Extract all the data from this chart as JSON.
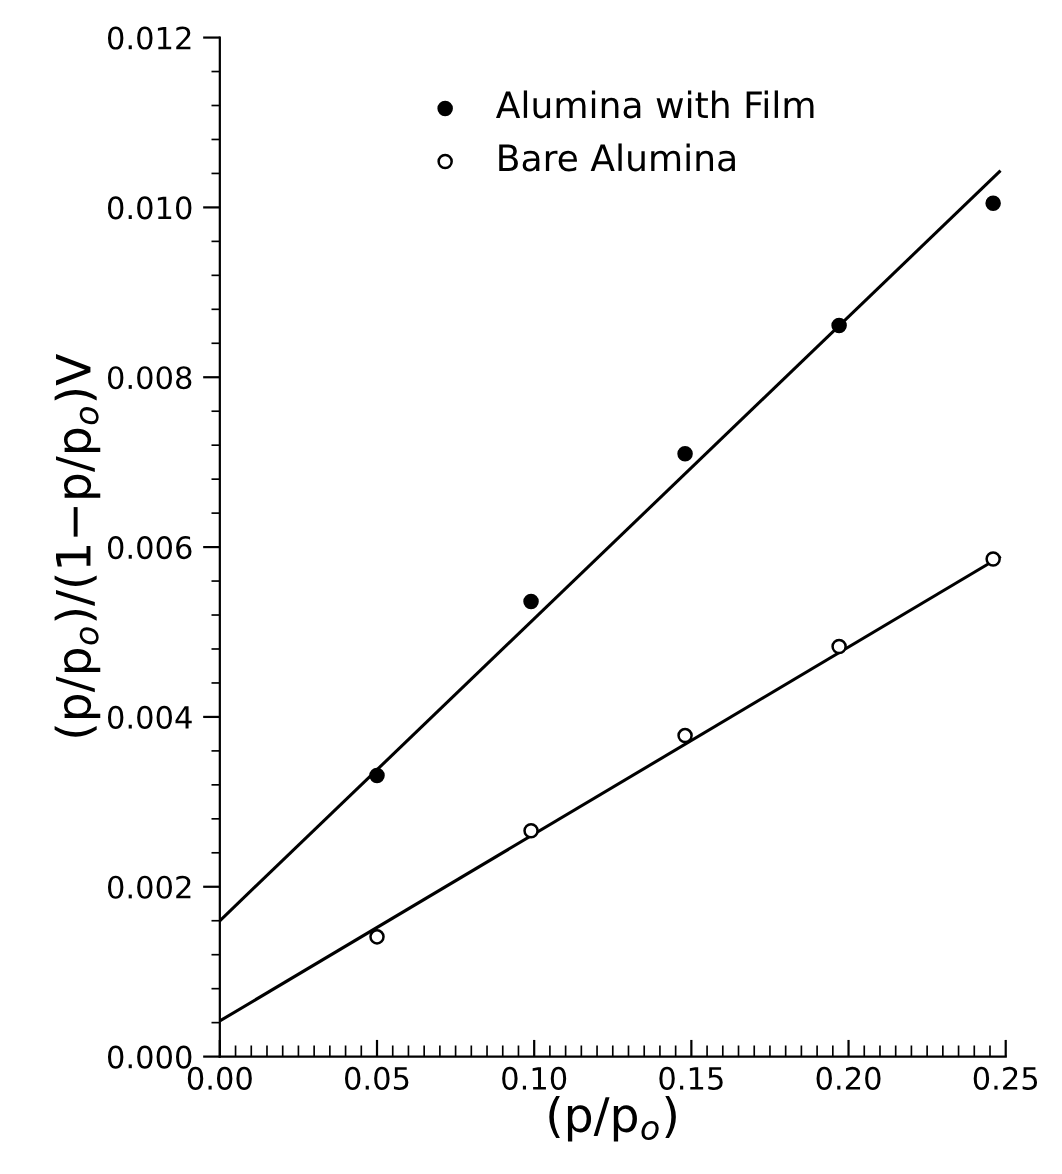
{
  "chart_data": {
    "type": "scatter",
    "xlabel": "(p/p$_{o}$)",
    "ylabel": "(p/p$_{o}$)/(1−p/p$_{o}$)V",
    "series": [
      {
        "name": "Alumina with Film",
        "marker": "circle",
        "color": "#000000",
        "x": [
          0.05,
          0.099,
          0.148,
          0.197,
          0.246
        ],
        "values": [
          0.00331,
          0.00536,
          0.0071,
          0.00861,
          0.01005
        ]
      },
      {
        "name": "Bare Alumina",
        "marker": "circle",
        "color": "#ffffff",
        "x": [
          0.05,
          0.099,
          0.148,
          0.197,
          0.246
        ],
        "values": [
          0.00141,
          0.00266,
          0.00378,
          0.00483,
          0.00586
        ]
      },
      {
        "type": "line",
        "color": "#000000",
        "line_style": "solid",
        "x": [
          0.0,
          0.248
        ],
        "values": [
          0.0016,
          0.01042
        ]
      },
      {
        "type": "line",
        "color": "#000000",
        "line_style": "solid",
        "x": [
          0.0,
          0.248
        ],
        "values": [
          0.00042,
          0.00588
        ]
      }
    ],
    "xlim": [
      0.0,
      0.25
    ],
    "xticks": [
      {
        "value": 0.0,
        "label": "0.00"
      },
      {
        "value": 0.05,
        "label": "0.05"
      },
      {
        "value": 0.1,
        "label": "0.10"
      },
      {
        "value": 0.15,
        "label": "0.15"
      },
      {
        "value": 0.2,
        "label": "0.20"
      },
      {
        "value": 0.25,
        "label": "0.25"
      }
    ],
    "ylim": [
      0.0,
      0.012
    ],
    "yticks": [
      {
        "value": 0.0,
        "label": "0.000"
      },
      {
        "value": 0.002,
        "label": "0.002"
      },
      {
        "value": 0.004,
        "label": "0.004"
      },
      {
        "value": 0.006,
        "label": "0.006"
      },
      {
        "value": 0.008,
        "label": "0.008"
      },
      {
        "value": 0.01,
        "label": "0.010"
      },
      {
        "value": 0.012,
        "label": "0.012"
      }
    ],
    "grid": false,
    "legend": "top"
  }
}
